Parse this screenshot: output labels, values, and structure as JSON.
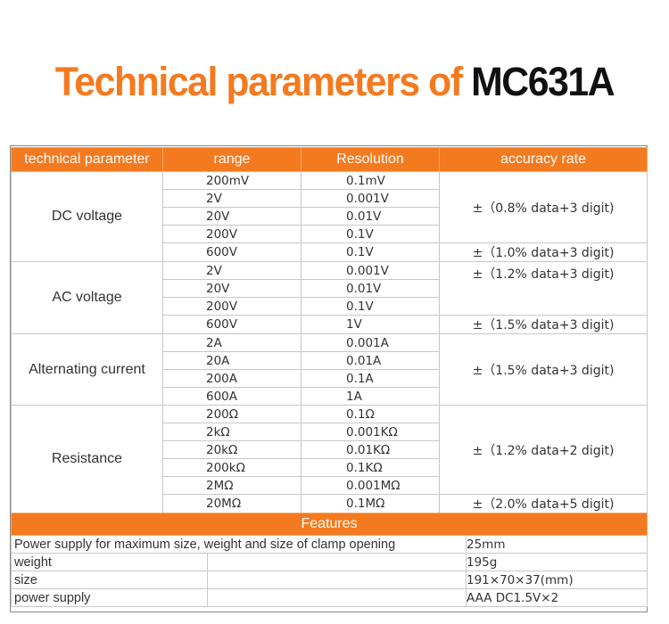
{
  "title": {
    "part1": "Technical parameters of ",
    "part2": "MC631A"
  },
  "table": {
    "headers": [
      "technical parameter",
      "range",
      "Resolution",
      "accuracy rate"
    ],
    "dc": {
      "label": "DC voltage",
      "ranges": [
        "200mV",
        "2V",
        "20V",
        "200V",
        "600V"
      ],
      "resolutions": [
        "0.1mV",
        "0.001V",
        "0.01V",
        "0.1V",
        "0.1V"
      ],
      "accuracy": [
        "±（0.8% data+3 digit)",
        "±（1.0% data+3 digit)"
      ]
    },
    "ac": {
      "label": "AC voltage",
      "ranges": [
        "2V",
        "20V",
        "200V",
        "600V"
      ],
      "resolutions": [
        "0.001V",
        "0.01V",
        "0.1V",
        "1V"
      ],
      "accuracy": [
        "±（1.2% data+3 digit)",
        "±（1.5% data+3 digit)"
      ]
    },
    "acc": {
      "label": "Alternating current",
      "ranges": [
        "2A",
        "20A",
        "200A",
        "600A"
      ],
      "resolutions": [
        "0.001A",
        "0.01A",
        "0.1A",
        "1A"
      ],
      "accuracy": [
        "±（1.5% data+3 digit)"
      ]
    },
    "res": {
      "label": "Resistance",
      "ranges": [
        "200Ω",
        "2kΩ",
        "20kΩ",
        "200kΩ",
        "2MΩ",
        "20MΩ"
      ],
      "resolutions": [
        "0.1Ω",
        "0.001KΩ",
        "0.01KΩ",
        "0.1KΩ",
        "0.001MΩ",
        "0.1MΩ"
      ],
      "accuracy": [
        "±（1.2% data+2 digit)",
        "±（2.0% data+5 digit)"
      ]
    }
  },
  "features": {
    "title": "Features",
    "rows": [
      {
        "label": "Power supply for maximum size, weight and size of clamp opening",
        "value": "25mm"
      },
      {
        "label": "weight",
        "value": "195g"
      },
      {
        "label": "size",
        "value": "191×70×37(mm)"
      },
      {
        "label": "power supply",
        "value": "AAA DC1.5V×2"
      }
    ]
  }
}
